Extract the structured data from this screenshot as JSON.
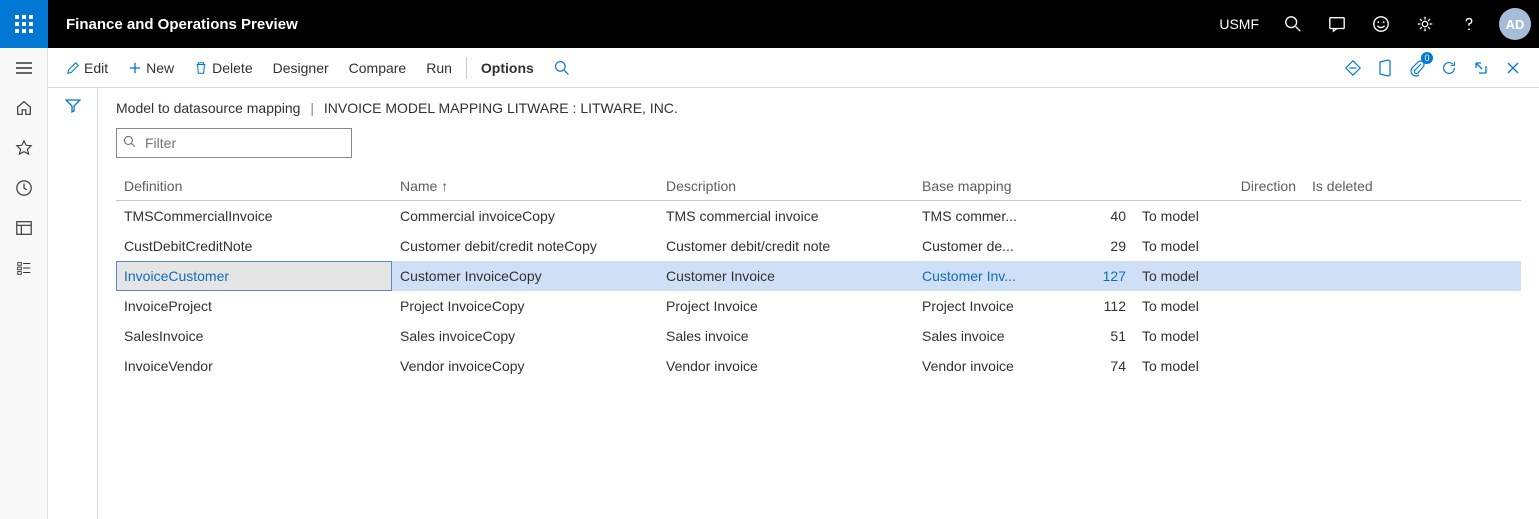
{
  "header": {
    "app_title": "Finance and Operations Preview",
    "company": "USMF",
    "avatar_initials": "AD"
  },
  "actionbar": {
    "edit": "Edit",
    "new": "New",
    "delete": "Delete",
    "designer": "Designer",
    "compare": "Compare",
    "run": "Run",
    "options": "Options",
    "attachment_count": "0"
  },
  "breadcrumb": {
    "page": "Model to datasource mapping",
    "context": "INVOICE MODEL MAPPING LITWARE : LITWARE, INC."
  },
  "filter": {
    "placeholder": "Filter"
  },
  "columns": {
    "definition": "Definition",
    "name": "Name",
    "description": "Description",
    "base_mapping": "Base mapping",
    "direction": "Direction",
    "is_deleted": "Is deleted"
  },
  "rows": [
    {
      "definition": "TMSCommercialInvoice",
      "name": "Commercial invoiceCopy",
      "description": "TMS commercial invoice",
      "base": "TMS commer...",
      "base_num": "40",
      "direction": "To model",
      "deleted": "",
      "selected": false
    },
    {
      "definition": "CustDebitCreditNote",
      "name": "Customer debit/credit noteCopy",
      "description": "Customer debit/credit note",
      "base": "Customer de...",
      "base_num": "29",
      "direction": "To model",
      "deleted": "",
      "selected": false
    },
    {
      "definition": "InvoiceCustomer",
      "name": "Customer InvoiceCopy",
      "description": "Customer Invoice",
      "base": "Customer Inv...",
      "base_num": "127",
      "direction": "To model",
      "deleted": "",
      "selected": true
    },
    {
      "definition": "InvoiceProject",
      "name": "Project InvoiceCopy",
      "description": "Project Invoice",
      "base": "Project Invoice",
      "base_num": "112",
      "direction": "To model",
      "deleted": "",
      "selected": false
    },
    {
      "definition": "SalesInvoice",
      "name": "Sales invoiceCopy",
      "description": "Sales invoice",
      "base": "Sales invoice",
      "base_num": "51",
      "direction": "To model",
      "deleted": "",
      "selected": false
    },
    {
      "definition": "InvoiceVendor",
      "name": "Vendor invoiceCopy",
      "description": "Vendor invoice",
      "base": "Vendor invoice",
      "base_num": "74",
      "direction": "To model",
      "deleted": "",
      "selected": false
    }
  ],
  "colors": {
    "accent": "#0078d4",
    "row_select": "#cfe0f6",
    "link": "#0f6cbd"
  }
}
